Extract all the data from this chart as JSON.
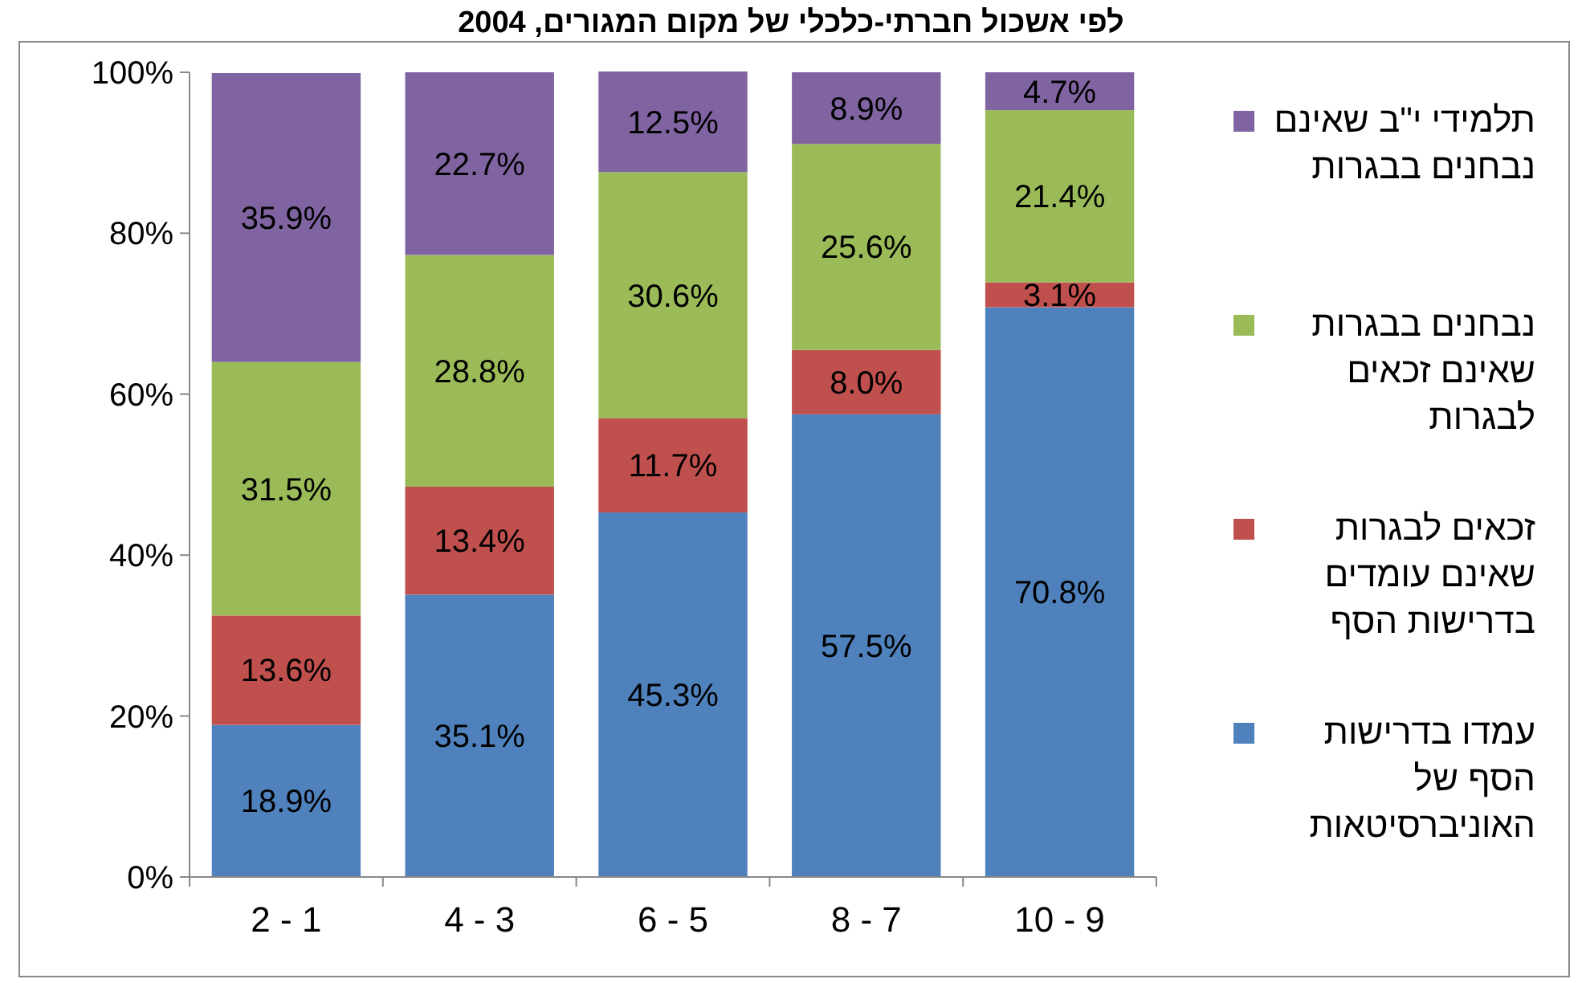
{
  "chart_data": {
    "type": "bar",
    "stacked": true,
    "title": "לפי אשכול חברתי-כלכלי של מקום המגורים, 2004",
    "categories": [
      "2 - 1",
      "4 - 3",
      "6 - 5",
      "8 - 7",
      "10 - 9"
    ],
    "series": [
      {
        "name": "עמדו בדרישות הסף של האוניברסיטאות",
        "color": "#4f81bd",
        "values": [
          18.9,
          35.1,
          45.3,
          57.5,
          70.8
        ]
      },
      {
        "name": "זכאים לבגרות שאינם עומדים בדרישות הסף",
        "color": "#c0504d",
        "values": [
          13.6,
          13.4,
          11.7,
          8.0,
          3.1
        ]
      },
      {
        "name": "נבחנים בבגרות שאינם זכאים לבגרות",
        "color": "#9bbb59",
        "values": [
          31.5,
          28.8,
          30.6,
          25.6,
          21.4
        ]
      },
      {
        "name": "תלמידי י\"ב שאינם נבחנים בבגרות",
        "color": "#8064a2",
        "values": [
          35.9,
          22.7,
          12.5,
          8.9,
          4.7
        ]
      }
    ],
    "value_labels": [
      [
        "18.9%",
        "35.1%",
        "45.3%",
        "57.5%",
        "70.8%"
      ],
      [
        "13.6%",
        "13.4%",
        "11.7%",
        "8.0%",
        "3.1%"
      ],
      [
        "31.5%",
        "28.8%",
        "30.6%",
        "25.6%",
        "21.4%"
      ],
      [
        "35.9%",
        "22.7%",
        "12.5%",
        "8.9%",
        "4.7%"
      ]
    ],
    "ylim": [
      0,
      100
    ],
    "yticks": [
      {
        "value": 0,
        "label": "0%"
      },
      {
        "value": 20,
        "label": "20%"
      },
      {
        "value": 40,
        "label": "40%"
      },
      {
        "value": 60,
        "label": "60%"
      },
      {
        "value": 80,
        "label": "80%"
      },
      {
        "value": 100,
        "label": "100%"
      }
    ],
    "grid": false,
    "legend": "right"
  }
}
